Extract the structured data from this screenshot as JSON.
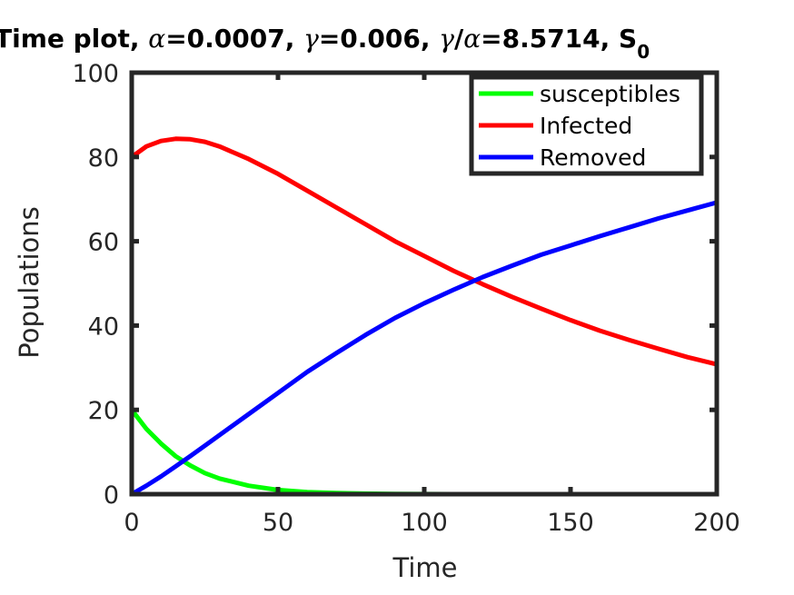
{
  "chart_data": {
    "type": "line",
    "title": {
      "prefix": "Time plot, ",
      "alpha_sym": "α",
      "alpha_val": "=0.0007, ",
      "gamma_sym": "γ",
      "gamma_val": "=0.006, ",
      "ratio_gamma": "γ",
      "ratio_slash": "/",
      "ratio_alpha": "α",
      "ratio_val": "=8.5714, S",
      "s_sub": "0"
    },
    "xlabel": "Time",
    "ylabel": "Populations",
    "xlim": [
      0,
      200
    ],
    "ylim": [
      0,
      100
    ],
    "xticks": [
      0,
      50,
      100,
      150,
      200
    ],
    "yticks": [
      0,
      20,
      40,
      60,
      80,
      100
    ],
    "grid": false,
    "legend_position": "top-right",
    "x": [
      0,
      5,
      10,
      15,
      20,
      25,
      30,
      40,
      50,
      60,
      70,
      80,
      90,
      100,
      110,
      120,
      130,
      140,
      150,
      160,
      170,
      180,
      190,
      200
    ],
    "series": [
      {
        "name": "susceptibles",
        "color": "#00ff00",
        "values": [
          20,
          15.5,
          12.0,
          9.0,
          6.8,
          5.0,
          3.7,
          2.0,
          1.0,
          0.5,
          0.25,
          0.12,
          0.06,
          0.03,
          0.01,
          0,
          0,
          0,
          0,
          0,
          0,
          0,
          0,
          0
        ]
      },
      {
        "name": "Infected",
        "color": "#ff0000",
        "values": [
          80,
          82.5,
          83.8,
          84.3,
          84.2,
          83.6,
          82.5,
          79.5,
          76.0,
          72.0,
          68.0,
          64.0,
          60.0,
          56.5,
          53.0,
          49.8,
          46.8,
          44.0,
          41.3,
          38.8,
          36.6,
          34.5,
          32.5,
          30.8
        ]
      },
      {
        "name": "Removed",
        "color": "#0000ff",
        "values": [
          0,
          2.0,
          4.2,
          6.6,
          9.0,
          11.5,
          14.0,
          19.0,
          24.0,
          29.0,
          33.5,
          37.8,
          41.8,
          45.3,
          48.5,
          51.5,
          54.2,
          56.8,
          59.0,
          61.2,
          63.3,
          65.4,
          67.3,
          69.2
        ]
      }
    ]
  }
}
